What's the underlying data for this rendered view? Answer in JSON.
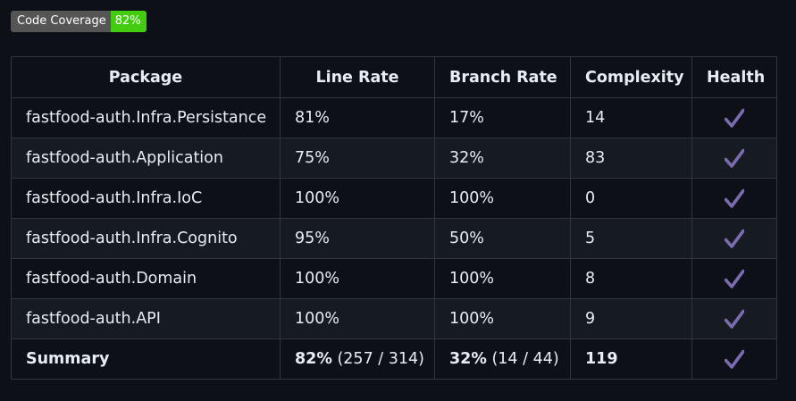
{
  "badge": {
    "label": "Code Coverage",
    "value": "82%",
    "label_color": "#555555",
    "value_color": "#44cc11"
  },
  "table": {
    "headers": {
      "package": "Package",
      "line_rate": "Line Rate",
      "branch_rate": "Branch Rate",
      "complexity": "Complexity",
      "health": "Health"
    },
    "rows": [
      {
        "package": "fastfood-auth.Infra.Persistance",
        "line_rate": "81%",
        "branch_rate": "17%",
        "complexity": "14",
        "health": "check-icon"
      },
      {
        "package": "fastfood-auth.Application",
        "line_rate": "75%",
        "branch_rate": "32%",
        "complexity": "83",
        "health": "check-icon"
      },
      {
        "package": "fastfood-auth.Infra.IoC",
        "line_rate": "100%",
        "branch_rate": "100%",
        "complexity": "0",
        "health": "check-icon"
      },
      {
        "package": "fastfood-auth.Infra.Cognito",
        "line_rate": "95%",
        "branch_rate": "50%",
        "complexity": "5",
        "health": "check-icon"
      },
      {
        "package": "fastfood-auth.Domain",
        "line_rate": "100%",
        "branch_rate": "100%",
        "complexity": "8",
        "health": "check-icon"
      },
      {
        "package": "fastfood-auth.API",
        "line_rate": "100%",
        "branch_rate": "100%",
        "complexity": "9",
        "health": "check-icon"
      }
    ],
    "summary": {
      "label": "Summary",
      "line_rate": "82%",
      "line_detail": "(257 / 314)",
      "branch_rate": "32%",
      "branch_detail": "(14 / 44)",
      "complexity": "119",
      "health": "check-icon"
    }
  },
  "colors": {
    "background": "#0d1117",
    "row_alt": "#161b22",
    "border": "#30363d",
    "text": "#e6edf3",
    "check": "#7c6bb0"
  }
}
